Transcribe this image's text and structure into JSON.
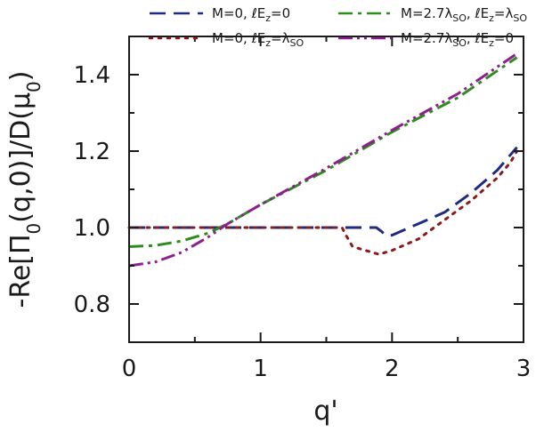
{
  "chart_data": {
    "type": "line",
    "title": "",
    "xlabel": "q'",
    "ylabel": "-Re[Π0(q,0)]/D(μ0)",
    "xlim": [
      0,
      3
    ],
    "ylim": [
      0.7,
      1.5
    ],
    "xticks": [
      0,
      1,
      2,
      3
    ],
    "yticks": [
      0.8,
      1.0,
      1.2,
      1.4
    ],
    "xtick_labels": [
      "0",
      "1",
      "2",
      "3"
    ],
    "ytick_labels": [
      "0.8",
      "1.0",
      "1.2",
      "1.4"
    ],
    "grid": false,
    "legend_position": "top",
    "series": [
      {
        "name": "M=0, ℓEz=0",
        "legend": {
          "base": "M=0, ℓE",
          "sub1": "z",
          "tail": "=0"
        },
        "color": "#1f2a85",
        "style": "dashed",
        "x": [
          0,
          0.5,
          1.0,
          1.5,
          1.88,
          1.92,
          1.95,
          2.0,
          2.2,
          2.4,
          2.6,
          2.8,
          2.9,
          2.95
        ],
        "y": [
          1.0,
          1.0,
          1.0,
          1.0,
          1.0,
          0.99,
          0.98,
          0.98,
          1.01,
          1.04,
          1.09,
          1.15,
          1.19,
          1.21
        ]
      },
      {
        "name": "M=0, ℓEz=λSO",
        "legend": {
          "base": "M=0, ℓE",
          "sub1": "z",
          "mid": "=λ",
          "sub2": "SO"
        },
        "color": "#8b1a1a",
        "style": "dotted",
        "x": [
          0,
          0.5,
          1.0,
          1.5,
          1.62,
          1.65,
          1.7,
          1.8,
          1.9,
          2.0,
          2.2,
          2.4,
          2.6,
          2.8,
          2.9,
          2.95
        ],
        "y": [
          1.0,
          1.0,
          1.0,
          1.0,
          1.0,
          0.98,
          0.95,
          0.94,
          0.93,
          0.94,
          0.97,
          1.02,
          1.07,
          1.13,
          1.17,
          1.2
        ]
      },
      {
        "name": "M=2.7λSO, ℓEz=λSO",
        "legend": {
          "base": "M=2.7λ",
          "sub1": "SO",
          "mid": ", ℓE",
          "sub2": "z",
          "mid2": "=λ",
          "sub3": "SO"
        },
        "color": "#2e8b1e",
        "style": "dashdot",
        "x": [
          0,
          0.2,
          0.4,
          0.6,
          0.75,
          1.0,
          1.5,
          2.0,
          2.5,
          2.95
        ],
        "y": [
          0.95,
          0.953,
          0.965,
          0.985,
          1.01,
          1.06,
          1.15,
          1.25,
          1.34,
          1.445
        ]
      },
      {
        "name": "M=2.7λSO, ℓEz=0",
        "legend": {
          "base": "M=2.7λ",
          "sub1": "SO",
          "mid": ", ℓE",
          "sub2": "z",
          "tail": "=0"
        },
        "color": "#8e1f8e",
        "style": "dashdotdot",
        "x": [
          0,
          0.2,
          0.4,
          0.6,
          0.75,
          1.0,
          1.5,
          2.0,
          2.5,
          2.95
        ],
        "y": [
          0.9,
          0.91,
          0.935,
          0.975,
          1.01,
          1.06,
          1.155,
          1.255,
          1.35,
          1.455
        ]
      }
    ]
  }
}
